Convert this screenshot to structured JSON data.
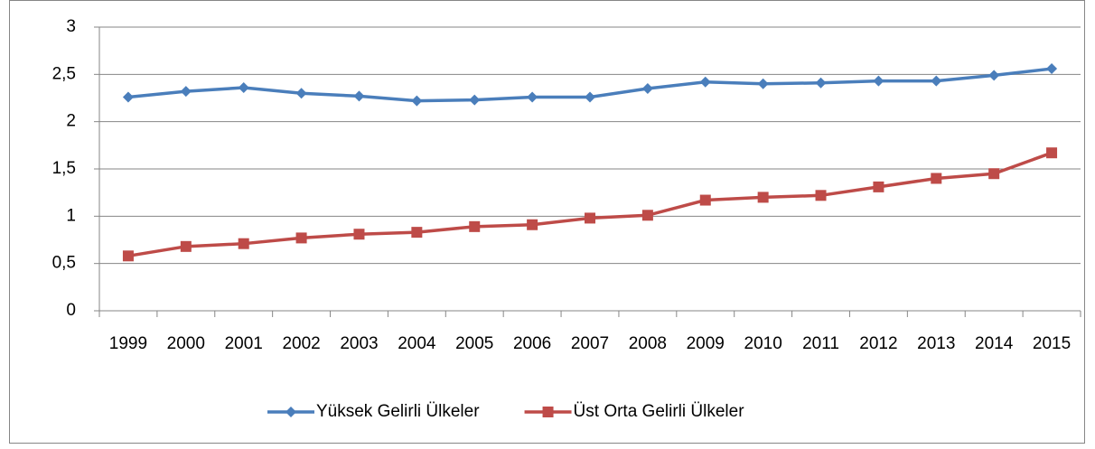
{
  "chart_data": {
    "type": "line",
    "categories": [
      "1999",
      "2000",
      "2001",
      "2002",
      "2003",
      "2004",
      "2005",
      "2006",
      "2007",
      "2008",
      "2009",
      "2010",
      "2011",
      "2012",
      "2013",
      "2014",
      "2015"
    ],
    "series": [
      {
        "name": "Yüksek Gelirli Ülkeler",
        "color": "#4a7ebb",
        "marker": "diamond",
        "values": [
          2.26,
          2.32,
          2.36,
          2.3,
          2.27,
          2.22,
          2.23,
          2.26,
          2.26,
          2.35,
          2.42,
          2.4,
          2.41,
          2.43,
          2.43,
          2.49,
          2.56
        ]
      },
      {
        "name": "Üst Orta Gelirli Ülkeler",
        "color": "#be4b48",
        "marker": "square",
        "values": [
          0.58,
          0.68,
          0.71,
          0.77,
          0.81,
          0.83,
          0.89,
          0.91,
          0.98,
          1.01,
          1.17,
          1.2,
          1.22,
          1.31,
          1.4,
          1.45,
          1.67
        ]
      }
    ],
    "ylim": [
      0,
      3
    ],
    "yticks": [
      0,
      {
        "value": 0.5,
        "label": "0,5"
      },
      1,
      {
        "value": 1.5,
        "label": "1,5"
      },
      2,
      {
        "value": 2.5,
        "label": "2,5"
      },
      3
    ],
    "grid": true,
    "legend": "bottom"
  }
}
